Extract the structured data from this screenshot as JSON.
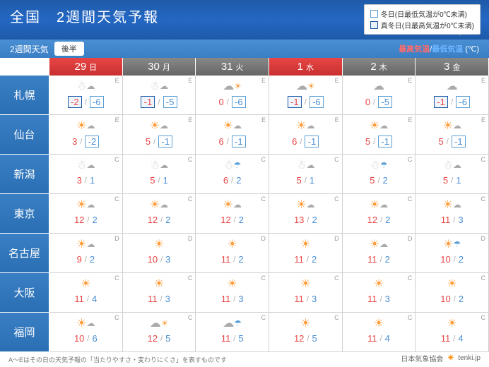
{
  "header": {
    "title": "全国　2週間天気予報",
    "issued": "12月21日4時発表",
    "period_label": "2週間天気",
    "period_tab": "後半",
    "hi_label": "最高気温",
    "lo_label": "最低気温",
    "unit": "(℃)"
  },
  "legend": {
    "fuyu": "冬日(日最低気温が0℃未満)",
    "mafuyu": "真冬日(日最高気温が0℃未満)"
  },
  "days": [
    {
      "num": "29",
      "dow": "日",
      "cls": "sun"
    },
    {
      "num": "30",
      "dow": "月",
      "cls": ""
    },
    {
      "num": "31",
      "dow": "火",
      "cls": ""
    },
    {
      "num": "1",
      "dow": "水",
      "cls": "wed-red"
    },
    {
      "num": "2",
      "dow": "木",
      "cls": ""
    },
    {
      "num": "3",
      "dow": "金",
      "cls": ""
    }
  ],
  "cities": [
    {
      "name": "札幌",
      "cells": [
        {
          "icon": "snow-cloud",
          "hi": "-2",
          "lo": "-6",
          "conf": "E",
          "hi_box": "mafuyu",
          "lo_box": "fuyu"
        },
        {
          "icon": "snow-cloud",
          "hi": "-1",
          "lo": "-5",
          "conf": "E",
          "hi_box": "mafuyu",
          "lo_box": "fuyu"
        },
        {
          "icon": "cloud-sun",
          "hi": "0",
          "lo": "-6",
          "conf": "E",
          "hi_box": "",
          "lo_box": "fuyu"
        },
        {
          "icon": "cloud-sun",
          "hi": "-1",
          "lo": "-6",
          "conf": "E",
          "hi_box": "mafuyu",
          "lo_box": "fuyu"
        },
        {
          "icon": "cloud",
          "hi": "0",
          "lo": "-5",
          "conf": "E",
          "hi_box": "",
          "lo_box": "fuyu"
        },
        {
          "icon": "cloud",
          "hi": "-1",
          "lo": "-6",
          "conf": "E",
          "hi_box": "mafuyu",
          "lo_box": "fuyu"
        }
      ]
    },
    {
      "name": "仙台",
      "cells": [
        {
          "icon": "sun-cloud",
          "hi": "3",
          "lo": "-2",
          "conf": "E",
          "hi_box": "",
          "lo_box": "fuyu"
        },
        {
          "icon": "sun-cloud",
          "hi": "5",
          "lo": "-1",
          "conf": "E",
          "hi_box": "",
          "lo_box": "fuyu"
        },
        {
          "icon": "sun-cloud",
          "hi": "6",
          "lo": "-1",
          "conf": "E",
          "hi_box": "",
          "lo_box": "fuyu"
        },
        {
          "icon": "sun-cloud",
          "hi": "6",
          "lo": "-1",
          "conf": "E",
          "hi_box": "",
          "lo_box": "fuyu"
        },
        {
          "icon": "sun-cloud",
          "hi": "5",
          "lo": "-1",
          "conf": "E",
          "hi_box": "",
          "lo_box": "fuyu"
        },
        {
          "icon": "sun-cloud",
          "hi": "5",
          "lo": "-1",
          "conf": "E",
          "hi_box": "",
          "lo_box": "fuyu"
        }
      ]
    },
    {
      "name": "新潟",
      "cells": [
        {
          "icon": "snow-cloud",
          "hi": "3",
          "lo": "1",
          "conf": "C",
          "hi_box": "",
          "lo_box": ""
        },
        {
          "icon": "snow-cloud",
          "hi": "5",
          "lo": "1",
          "conf": "C",
          "hi_box": "",
          "lo_box": ""
        },
        {
          "icon": "snow-rain",
          "hi": "6",
          "lo": "2",
          "conf": "C",
          "hi_box": "",
          "lo_box": ""
        },
        {
          "icon": "snow-cloud",
          "hi": "5",
          "lo": "1",
          "conf": "C",
          "hi_box": "",
          "lo_box": ""
        },
        {
          "icon": "snow-rain",
          "hi": "5",
          "lo": "2",
          "conf": "C",
          "hi_box": "",
          "lo_box": ""
        },
        {
          "icon": "snow-cloud",
          "hi": "5",
          "lo": "1",
          "conf": "C",
          "hi_box": "",
          "lo_box": ""
        }
      ]
    },
    {
      "name": "東京",
      "cells": [
        {
          "icon": "sun-cloud",
          "hi": "12",
          "lo": "2",
          "conf": "C",
          "hi_box": "",
          "lo_box": ""
        },
        {
          "icon": "sun-cloud",
          "hi": "12",
          "lo": "2",
          "conf": "C",
          "hi_box": "",
          "lo_box": ""
        },
        {
          "icon": "sun-cloud",
          "hi": "12",
          "lo": "2",
          "conf": "C",
          "hi_box": "",
          "lo_box": ""
        },
        {
          "icon": "sun-cloud",
          "hi": "13",
          "lo": "2",
          "conf": "C",
          "hi_box": "",
          "lo_box": ""
        },
        {
          "icon": "sun-cloud",
          "hi": "12",
          "lo": "2",
          "conf": "C",
          "hi_box": "",
          "lo_box": ""
        },
        {
          "icon": "sun-cloud",
          "hi": "11",
          "lo": "3",
          "conf": "C",
          "hi_box": "",
          "lo_box": ""
        }
      ]
    },
    {
      "name": "名古屋",
      "cells": [
        {
          "icon": "sun-cloud",
          "hi": "9",
          "lo": "2",
          "conf": "D",
          "hi_box": "",
          "lo_box": ""
        },
        {
          "icon": "sun",
          "hi": "10",
          "lo": "3",
          "conf": "D",
          "hi_box": "",
          "lo_box": ""
        },
        {
          "icon": "sun",
          "hi": "11",
          "lo": "2",
          "conf": "D",
          "hi_box": "",
          "lo_box": ""
        },
        {
          "icon": "sun",
          "hi": "11",
          "lo": "2",
          "conf": "D",
          "hi_box": "",
          "lo_box": ""
        },
        {
          "icon": "sun-cloud",
          "hi": "11",
          "lo": "2",
          "conf": "D",
          "hi_box": "",
          "lo_box": ""
        },
        {
          "icon": "sun-rain",
          "hi": "10",
          "lo": "2",
          "conf": "D",
          "hi_box": "",
          "lo_box": ""
        }
      ]
    },
    {
      "name": "大阪",
      "cells": [
        {
          "icon": "sun",
          "hi": "11",
          "lo": "4",
          "conf": "C",
          "hi_box": "",
          "lo_box": ""
        },
        {
          "icon": "sun",
          "hi": "11",
          "lo": "3",
          "conf": "C",
          "hi_box": "",
          "lo_box": ""
        },
        {
          "icon": "sun",
          "hi": "11",
          "lo": "3",
          "conf": "C",
          "hi_box": "",
          "lo_box": ""
        },
        {
          "icon": "sun",
          "hi": "11",
          "lo": "3",
          "conf": "C",
          "hi_box": "",
          "lo_box": ""
        },
        {
          "icon": "sun",
          "hi": "11",
          "lo": "3",
          "conf": "C",
          "hi_box": "",
          "lo_box": ""
        },
        {
          "icon": "sun",
          "hi": "10",
          "lo": "2",
          "conf": "C",
          "hi_box": "",
          "lo_box": ""
        }
      ]
    },
    {
      "name": "福岡",
      "cells": [
        {
          "icon": "sun-cloud",
          "hi": "10",
          "lo": "6",
          "conf": "C",
          "hi_box": "",
          "lo_box": ""
        },
        {
          "icon": "cloud-sun",
          "hi": "12",
          "lo": "5",
          "conf": "C",
          "hi_box": "",
          "lo_box": ""
        },
        {
          "icon": "cloud-rain",
          "hi": "11",
          "lo": "5",
          "conf": "C",
          "hi_box": "",
          "lo_box": ""
        },
        {
          "icon": "sun",
          "hi": "12",
          "lo": "5",
          "conf": "C",
          "hi_box": "",
          "lo_box": ""
        },
        {
          "icon": "sun",
          "hi": "11",
          "lo": "4",
          "conf": "C",
          "hi_box": "",
          "lo_box": ""
        },
        {
          "icon": "sun",
          "hi": "11",
          "lo": "4",
          "conf": "C",
          "hi_box": "",
          "lo_box": ""
        }
      ]
    }
  ],
  "footnote": "A～Eはその日の天気予報の「当たりやすさ・変わりにくさ」を表すものです",
  "footer": {
    "org": "日本気象協会",
    "site": "tenki.jp"
  }
}
